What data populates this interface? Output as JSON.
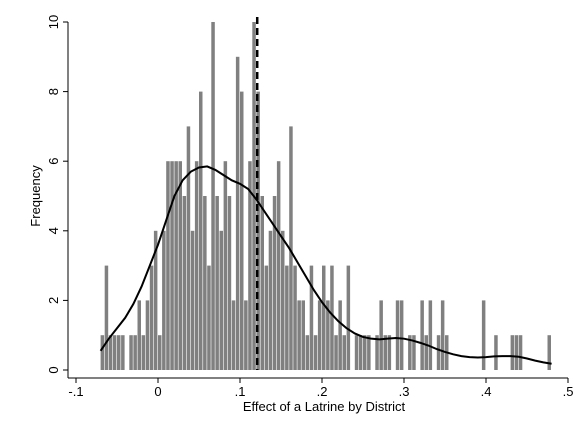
{
  "chart_data": {
    "type": "bar",
    "title": "",
    "xlabel": "Effect of a Latrine by District",
    "ylabel": "Frequency",
    "xlim": [
      -0.1,
      0.5
    ],
    "ylim": [
      0,
      10
    ],
    "x_ticks": [
      -0.1,
      0,
      0.1,
      0.2,
      0.3,
      0.4,
      0.5
    ],
    "x_tick_labels": [
      "-.1",
      "0",
      ".1",
      ".2",
      ".3",
      ".4",
      ".5"
    ],
    "y_ticks": [
      0,
      2,
      4,
      6,
      8,
      10
    ],
    "y_tick_labels": [
      "0",
      "2",
      "4",
      "6",
      "8",
      "10"
    ],
    "grid": false,
    "bar_color": "#808080",
    "bin_width": 0.005,
    "bins": [
      {
        "x": -0.07,
        "v": 1
      },
      {
        "x": -0.065,
        "v": 3
      },
      {
        "x": -0.06,
        "v": 1
      },
      {
        "x": -0.055,
        "v": 1
      },
      {
        "x": -0.05,
        "v": 1
      },
      {
        "x": -0.045,
        "v": 1
      },
      {
        "x": -0.04,
        "v": 0
      },
      {
        "x": -0.035,
        "v": 1
      },
      {
        "x": -0.03,
        "v": 1
      },
      {
        "x": -0.025,
        "v": 2
      },
      {
        "x": -0.02,
        "v": 1
      },
      {
        "x": -0.015,
        "v": 2
      },
      {
        "x": -0.01,
        "v": 3
      },
      {
        "x": -0.005,
        "v": 4
      },
      {
        "x": 0.0,
        "v": 1
      },
      {
        "x": 0.005,
        "v": 4
      },
      {
        "x": 0.01,
        "v": 6
      },
      {
        "x": 0.015,
        "v": 6
      },
      {
        "x": 0.02,
        "v": 6
      },
      {
        "x": 0.025,
        "v": 6
      },
      {
        "x": 0.03,
        "v": 5
      },
      {
        "x": 0.035,
        "v": 7
      },
      {
        "x": 0.04,
        "v": 4
      },
      {
        "x": 0.045,
        "v": 6
      },
      {
        "x": 0.05,
        "v": 8
      },
      {
        "x": 0.055,
        "v": 5
      },
      {
        "x": 0.06,
        "v": 3
      },
      {
        "x": 0.065,
        "v": 10
      },
      {
        "x": 0.07,
        "v": 5
      },
      {
        "x": 0.075,
        "v": 4
      },
      {
        "x": 0.08,
        "v": 6
      },
      {
        "x": 0.085,
        "v": 5
      },
      {
        "x": 0.09,
        "v": 2
      },
      {
        "x": 0.095,
        "v": 9
      },
      {
        "x": 0.1,
        "v": 8
      },
      {
        "x": 0.105,
        "v": 2
      },
      {
        "x": 0.11,
        "v": 6
      },
      {
        "x": 0.115,
        "v": 10
      },
      {
        "x": 0.12,
        "v": 8
      },
      {
        "x": 0.125,
        "v": 5
      },
      {
        "x": 0.13,
        "v": 3
      },
      {
        "x": 0.135,
        "v": 4
      },
      {
        "x": 0.14,
        "v": 5
      },
      {
        "x": 0.145,
        "v": 6
      },
      {
        "x": 0.15,
        "v": 4
      },
      {
        "x": 0.155,
        "v": 3
      },
      {
        "x": 0.16,
        "v": 7
      },
      {
        "x": 0.165,
        "v": 3
      },
      {
        "x": 0.17,
        "v": 2
      },
      {
        "x": 0.175,
        "v": 2
      },
      {
        "x": 0.18,
        "v": 1
      },
      {
        "x": 0.185,
        "v": 3
      },
      {
        "x": 0.19,
        "v": 1
      },
      {
        "x": 0.195,
        "v": 2
      },
      {
        "x": 0.2,
        "v": 3
      },
      {
        "x": 0.205,
        "v": 2
      },
      {
        "x": 0.21,
        "v": 3
      },
      {
        "x": 0.215,
        "v": 1
      },
      {
        "x": 0.22,
        "v": 2
      },
      {
        "x": 0.225,
        "v": 1
      },
      {
        "x": 0.23,
        "v": 3
      },
      {
        "x": 0.235,
        "v": 0
      },
      {
        "x": 0.24,
        "v": 1
      },
      {
        "x": 0.245,
        "v": 1
      },
      {
        "x": 0.25,
        "v": 1
      },
      {
        "x": 0.255,
        "v": 1
      },
      {
        "x": 0.26,
        "v": 0
      },
      {
        "x": 0.265,
        "v": 1
      },
      {
        "x": 0.27,
        "v": 2
      },
      {
        "x": 0.275,
        "v": 1
      },
      {
        "x": 0.28,
        "v": 1
      },
      {
        "x": 0.285,
        "v": 0
      },
      {
        "x": 0.29,
        "v": 2
      },
      {
        "x": 0.295,
        "v": 2
      },
      {
        "x": 0.3,
        "v": 0
      },
      {
        "x": 0.305,
        "v": 1
      },
      {
        "x": 0.31,
        "v": 1
      },
      {
        "x": 0.315,
        "v": 0
      },
      {
        "x": 0.32,
        "v": 2
      },
      {
        "x": 0.325,
        "v": 1
      },
      {
        "x": 0.33,
        "v": 2
      },
      {
        "x": 0.335,
        "v": 0
      },
      {
        "x": 0.34,
        "v": 1
      },
      {
        "x": 0.345,
        "v": 2
      },
      {
        "x": 0.35,
        "v": 1
      },
      {
        "x": 0.395,
        "v": 2
      },
      {
        "x": 0.41,
        "v": 1
      },
      {
        "x": 0.43,
        "v": 1
      },
      {
        "x": 0.435,
        "v": 1
      },
      {
        "x": 0.44,
        "v": 1
      },
      {
        "x": 0.475,
        "v": 1
      }
    ],
    "density": {
      "color": "#000000",
      "x": [
        -0.07,
        -0.06,
        -0.05,
        -0.04,
        -0.03,
        -0.02,
        -0.01,
        0.0,
        0.01,
        0.02,
        0.03,
        0.04,
        0.05,
        0.06,
        0.07,
        0.08,
        0.09,
        0.1,
        0.11,
        0.12,
        0.13,
        0.14,
        0.15,
        0.16,
        0.17,
        0.18,
        0.19,
        0.2,
        0.21,
        0.22,
        0.23,
        0.24,
        0.25,
        0.26,
        0.27,
        0.28,
        0.29,
        0.3,
        0.31,
        0.32,
        0.33,
        0.34,
        0.35,
        0.36,
        0.37,
        0.38,
        0.39,
        0.4,
        0.41,
        0.42,
        0.43,
        0.44,
        0.45,
        0.46,
        0.47,
        0.48
      ],
      "y": [
        0.55,
        0.9,
        1.2,
        1.5,
        1.9,
        2.4,
        3.0,
        3.6,
        4.3,
        5.0,
        5.45,
        5.7,
        5.82,
        5.85,
        5.75,
        5.6,
        5.45,
        5.35,
        5.2,
        4.9,
        4.55,
        4.2,
        3.85,
        3.5,
        3.1,
        2.7,
        2.3,
        1.95,
        1.65,
        1.4,
        1.2,
        1.05,
        0.95,
        0.9,
        0.88,
        0.9,
        0.92,
        0.9,
        0.85,
        0.78,
        0.7,
        0.6,
        0.52,
        0.45,
        0.4,
        0.37,
        0.36,
        0.37,
        0.39,
        0.4,
        0.4,
        0.38,
        0.33,
        0.27,
        0.22,
        0.18
      ]
    },
    "reference_line": {
      "x": 0.121,
      "style": "dashed",
      "color": "#000000"
    }
  }
}
